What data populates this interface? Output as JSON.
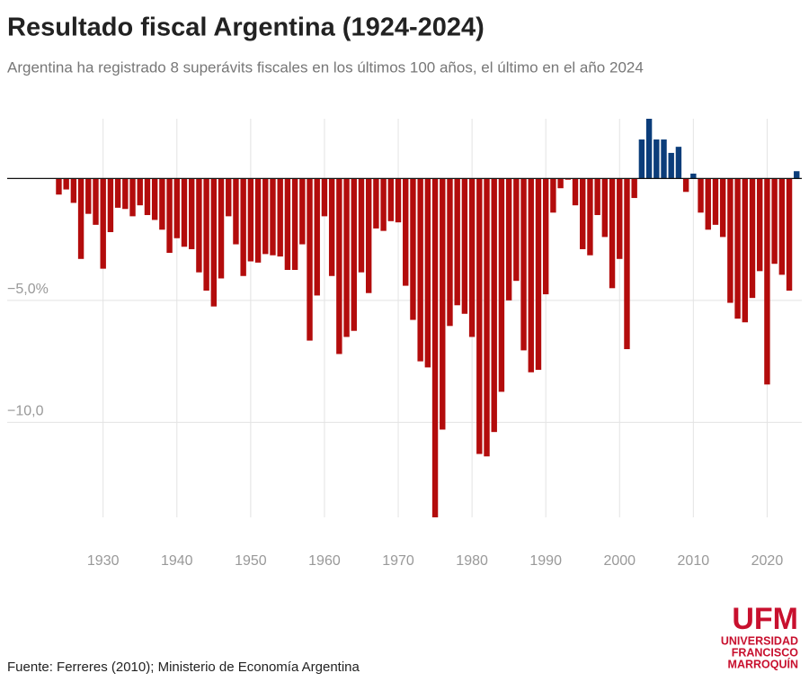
{
  "chart_data": {
    "type": "bar",
    "title": "Resultado fiscal Argentina (1924-2024)",
    "subtitle": "Argentina ha registrado 8 superávits fiscales en los últimos 100 años, el último en el año 2024",
    "source": "Fuente: Ferreres (2010); Ministerio de Economía Argentina",
    "logo": {
      "name": "UFM",
      "lines": [
        "UNIVERSIDAD",
        "FRANCISCO",
        "MARROQUÍN"
      ]
    },
    "x": [
      1924,
      1925,
      1926,
      1927,
      1928,
      1929,
      1930,
      1931,
      1932,
      1933,
      1934,
      1935,
      1936,
      1937,
      1938,
      1939,
      1940,
      1941,
      1942,
      1943,
      1944,
      1945,
      1946,
      1947,
      1948,
      1949,
      1950,
      1951,
      1952,
      1953,
      1954,
      1955,
      1956,
      1957,
      1958,
      1959,
      1960,
      1961,
      1962,
      1963,
      1964,
      1965,
      1966,
      1967,
      1968,
      1969,
      1970,
      1971,
      1972,
      1973,
      1974,
      1975,
      1976,
      1977,
      1978,
      1979,
      1980,
      1981,
      1982,
      1983,
      1984,
      1985,
      1986,
      1987,
      1988,
      1989,
      1990,
      1991,
      1992,
      1993,
      1994,
      1995,
      1996,
      1997,
      1998,
      1999,
      2000,
      2001,
      2002,
      2003,
      2004,
      2005,
      2006,
      2007,
      2008,
      2009,
      2010,
      2011,
      2012,
      2013,
      2014,
      2015,
      2016,
      2017,
      2018,
      2019,
      2020,
      2021,
      2022,
      2023,
      2024
    ],
    "values": [
      -0.66,
      -0.45,
      -1.0,
      -3.3,
      -1.45,
      -1.9,
      -3.7,
      -2.2,
      -1.2,
      -1.25,
      -1.55,
      -1.1,
      -1.5,
      -1.7,
      -2.1,
      -3.05,
      -2.45,
      -2.8,
      -2.9,
      -3.85,
      -4.6,
      -5.25,
      -4.1,
      -1.55,
      -2.7,
      -4.0,
      -3.4,
      -3.45,
      -3.1,
      -3.15,
      -3.2,
      -3.75,
      -3.75,
      -2.7,
      -6.65,
      -4.8,
      -1.55,
      -4.0,
      -7.2,
      -6.5,
      -6.25,
      -3.85,
      -4.7,
      -2.05,
      -2.15,
      -1.75,
      -1.8,
      -4.4,
      -5.8,
      -7.5,
      -7.75,
      -13.9,
      -10.3,
      -6.05,
      -5.2,
      -5.55,
      -6.5,
      -11.3,
      -11.4,
      -10.4,
      -8.75,
      -5.0,
      -4.2,
      -7.05,
      -7.95,
      -7.85,
      -4.75,
      -1.4,
      -0.4,
      -0.05,
      -1.1,
      -2.9,
      -3.15,
      -1.5,
      -2.4,
      -4.5,
      -3.3,
      -7.0,
      -0.8,
      1.6,
      2.45,
      1.6,
      1.6,
      1.05,
      1.3,
      -0.55,
      0.2,
      -1.4,
      -2.1,
      -1.9,
      -2.4,
      -5.1,
      -5.75,
      -5.9,
      -4.9,
      -3.8,
      -8.45,
      -3.5,
      -3.95,
      -4.6,
      0.3
    ],
    "positive_color": "#0b3d7a",
    "negative_color": "#b30c0c",
    "xlim": [
      1917,
      2024.7
    ],
    "xticks": [
      1930,
      1940,
      1950,
      1960,
      1970,
      1980,
      1990,
      2000,
      2010,
      2020
    ],
    "ylim": [
      -13.9,
      2.45
    ],
    "yticks": [
      {
        "value": -5,
        "label": "−5,0%"
      },
      {
        "value": -10,
        "label": "−10,0"
      }
    ],
    "grid": true
  }
}
